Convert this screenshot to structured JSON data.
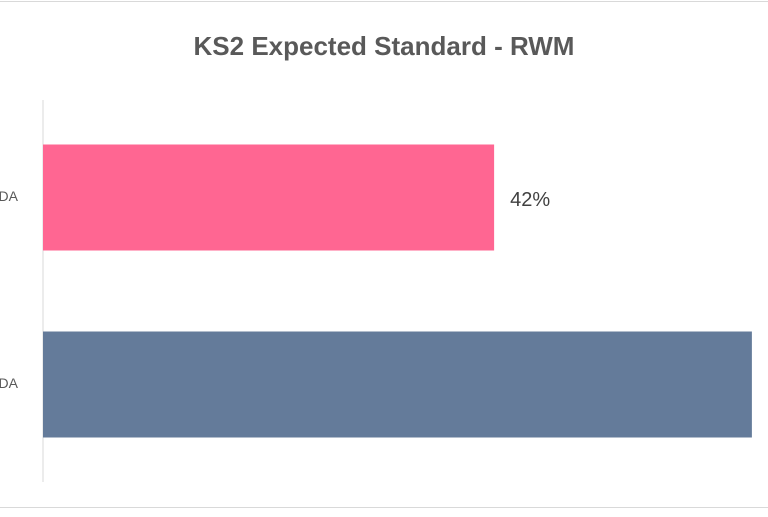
{
  "chart_data": {
    "type": "hbar",
    "title": "KS2 Expected Standard - RWM",
    "categories": [
      "DA",
      "DA"
    ],
    "values": [
      42,
      66
    ],
    "value_labels": [
      "42%",
      null
    ],
    "colors": [
      "#ff6692",
      "#647b9a"
    ],
    "xlim": [
      0,
      67.5
    ]
  }
}
